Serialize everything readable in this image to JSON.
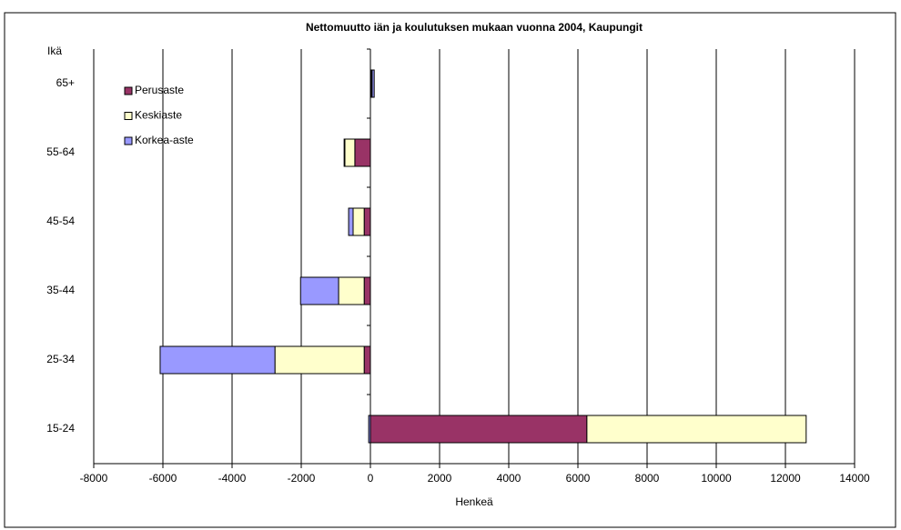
{
  "chart_data": {
    "type": "bar",
    "orientation": "horizontal",
    "stacked": true,
    "title": "Nettomuutto iän ja koulutuksen mukaan vuonna 2004, Kaupungit",
    "xlabel": "Henkeä",
    "ylabel": "Ikä",
    "categories": [
      "65+",
      "55-64",
      "45-54",
      "35-44",
      "25-34",
      "15-24"
    ],
    "series": [
      {
        "name": "Perusaste",
        "color": "#993366",
        "values": [
          30,
          -450,
          -180,
          -180,
          -180,
          6260
        ]
      },
      {
        "name": "Keskiaste",
        "color": "#ffffcc",
        "values": [
          20,
          -290,
          -320,
          -740,
          -2580,
          6340
        ]
      },
      {
        "name": "Korkea-aste",
        "color": "#9999ff",
        "values": [
          60,
          -20,
          -130,
          -1100,
          -3320,
          -50
        ]
      }
    ],
    "xlim": [
      -8000,
      14000
    ],
    "xticks": [
      -8000,
      -6000,
      -4000,
      -2000,
      0,
      2000,
      4000,
      6000,
      8000,
      10000,
      12000,
      14000
    ],
    "grid": true,
    "legend": "upper left"
  }
}
